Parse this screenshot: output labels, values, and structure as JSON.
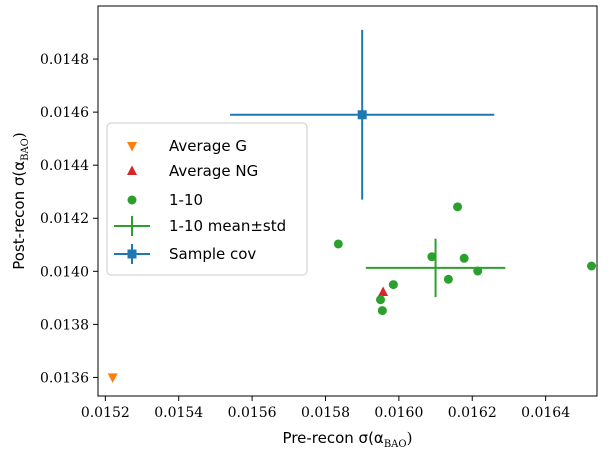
{
  "chart_data": {
    "type": "scatter",
    "xlabel": "Pre-recon σ(α",
    "xlabel_sub": "BAO",
    "xlabel_end": ")",
    "ylabel": "Post-recon σ(α",
    "ylabel_sub": "BAO",
    "ylabel_end": ")",
    "xlim": [
      0.01518,
      0.01654
    ],
    "ylim": [
      0.01353,
      0.015
    ],
    "xticks": [
      0.0152,
      0.0154,
      0.0156,
      0.0158,
      0.016,
      0.0162,
      0.0164
    ],
    "xtick_labels": [
      "0.0152",
      "0.0154",
      "0.0156",
      "0.0158",
      "0.0160",
      "0.0162",
      "0.0164"
    ],
    "yticks": [
      0.0136,
      0.0138,
      0.014,
      0.0142,
      0.0144,
      0.0146,
      0.0148
    ],
    "ytick_labels": [
      "0.0136",
      "0.0138",
      "0.0140",
      "0.0142",
      "0.0144",
      "0.0146",
      "0.0148"
    ],
    "grid": false,
    "legend_position": "center-left",
    "series": [
      {
        "name": "Average G",
        "marker": "triangle-down",
        "color": "#ff7f0e",
        "points": [
          [
            0.01522,
            0.0136
          ]
        ]
      },
      {
        "name": "Average NG",
        "marker": "triangle-up",
        "color": "#d62728",
        "points": [
          [
            0.015957,
            0.013922
          ]
        ]
      },
      {
        "name": "1-10",
        "marker": "circle",
        "color": "#2ca02c",
        "points": [
          [
            0.015835,
            0.014103
          ],
          [
            0.01595,
            0.013893
          ],
          [
            0.015955,
            0.013852
          ],
          [
            0.015985,
            0.01395
          ],
          [
            0.01609,
            0.014055
          ],
          [
            0.016135,
            0.01397
          ],
          [
            0.01616,
            0.014243
          ],
          [
            0.016178,
            0.014049
          ],
          [
            0.016215,
            0.014001
          ],
          [
            0.016525,
            0.01402
          ]
        ]
      },
      {
        "name": "1-10 mean±std",
        "marker": "errorbar",
        "color": "#2ca02c",
        "center": [
          0.0161,
          0.014013
        ],
        "xerr": 0.00019,
        "yerr": 0.00011
      },
      {
        "name": "Sample cov",
        "marker": "square-errorbar",
        "color": "#1f77b4",
        "center": [
          0.0159,
          0.01459
        ],
        "xerr": 0.00036,
        "yerr": 0.00032
      }
    ]
  }
}
